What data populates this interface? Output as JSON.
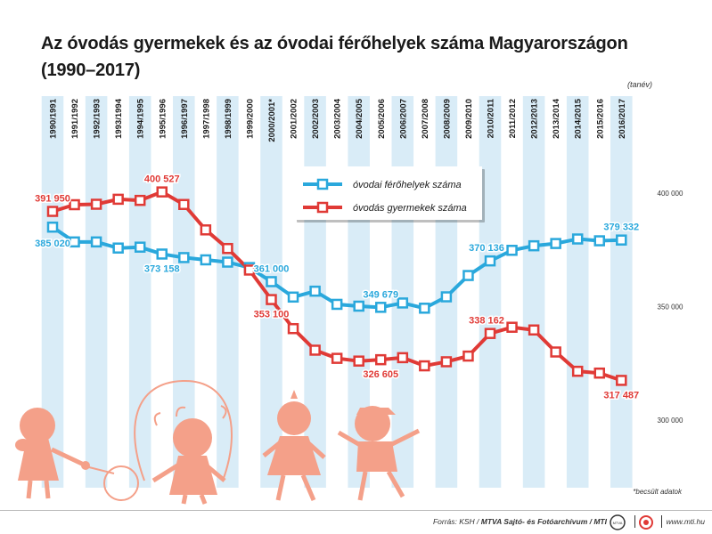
{
  "title_line1": "Az óvodás gyermekek és az óvodai férőhelyek száma Magyarországon",
  "title_line2": "(1990–2017)",
  "footnote": "*becsült adatok",
  "footer": {
    "source_prefix": "Forrás: KSH / ",
    "source_bold": "MTVA Sajtó- és Fotóarchívum / MTI",
    "url": "www.mti.hu",
    "logo1": "MTVA",
    "logo1_icon": "mtva-logo-icon",
    "logo2_icon": "mti-logo-icon"
  },
  "colors": {
    "capacity": "#2aa8dc",
    "children": "#e03a36",
    "capacity_label": "#2aa8dc",
    "children_label": "#e03a36",
    "stripe": "#d9ecf7",
    "silhouette": "#f4a089"
  },
  "chart_data": {
    "type": "line",
    "x_unit_label": "(tanév)",
    "categories": [
      "1990/1991",
      "1991/1992",
      "1992/1993",
      "1993/1994",
      "1994/1995",
      "1995/1996",
      "1996/1997",
      "1997/1998",
      "1998/1999",
      "1999/2000",
      "2000/2001*",
      "2001/2002",
      "2002/2003",
      "2003/2004",
      "2004/2005",
      "2005/2006",
      "2006/2007",
      "2007/2008",
      "2008/2009",
      "2009/2010",
      "2010/2011",
      "2011/2012",
      "2012/2013",
      "2013/2014",
      "2014/2015",
      "2015/2016",
      "2016/2017"
    ],
    "ylim": [
      300000,
      400000
    ],
    "yticks": [
      300000,
      350000,
      400000
    ],
    "ytick_labels": [
      "300 000",
      "350 000",
      "400 000"
    ],
    "legend_position": "top-center",
    "series": [
      {
        "name": "óvodai férőhelyek száma",
        "key": "capacity",
        "values": [
          385020,
          378500,
          378500,
          375800,
          376200,
          373158,
          371600,
          370600,
          369600,
          367200,
          361000,
          354200,
          356800,
          351000,
          350200,
          349679,
          351600,
          349300,
          354300,
          363700,
          370136,
          374800,
          376800,
          377800,
          379800,
          379000,
          379332
        ]
      },
      {
        "name": "óvodás gyermekek száma",
        "key": "children",
        "values": [
          391950,
          394900,
          395100,
          397300,
          396800,
          400527,
          395000,
          383800,
          375600,
          366100,
          353100,
          340300,
          330800,
          327200,
          326000,
          326605,
          327500,
          323900,
          325700,
          328200,
          338162,
          340900,
          339700,
          330000,
          321500,
          320700,
          317487
        ]
      }
    ],
    "data_labels": [
      {
        "series": "children",
        "index": 0,
        "text": "391 950",
        "pos": "above-right"
      },
      {
        "series": "children",
        "index": 5,
        "text": "400 527",
        "pos": "above"
      },
      {
        "series": "capacity",
        "index": 0,
        "text": "385 020",
        "pos": "below-right"
      },
      {
        "series": "capacity",
        "index": 5,
        "text": "373 158",
        "pos": "below"
      },
      {
        "series": "capacity",
        "index": 10,
        "text": "361 000",
        "pos": "above"
      },
      {
        "series": "children",
        "index": 10,
        "text": "353 100",
        "pos": "below"
      },
      {
        "series": "capacity",
        "index": 15,
        "text": "349 679",
        "pos": "above"
      },
      {
        "series": "children",
        "index": 15,
        "text": "326 605",
        "pos": "below"
      },
      {
        "series": "capacity",
        "index": 20,
        "text": "370 136",
        "pos": "above-left"
      },
      {
        "series": "children",
        "index": 20,
        "text": "338 162",
        "pos": "above-left"
      },
      {
        "series": "capacity",
        "index": 26,
        "text": "379 332",
        "pos": "above"
      },
      {
        "series": "children",
        "index": 26,
        "text": "317 487",
        "pos": "below"
      }
    ]
  }
}
